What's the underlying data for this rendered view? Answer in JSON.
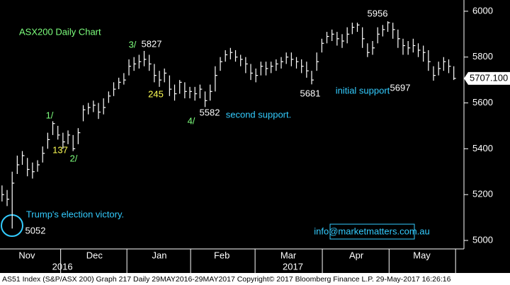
{
  "chart_data": {
    "type": "ohlc",
    "annotations": [
      {
        "text": "ASX200 Daily Chart",
        "color": "#7dff7d"
      },
      {
        "text": "3/",
        "color": "#7dff7d"
      },
      {
        "text": "5827",
        "color": "#ffffff"
      },
      {
        "text": "1/",
        "color": "#7dff7d"
      },
      {
        "text": "137",
        "color": "#ffff55"
      },
      {
        "text": "2/",
        "color": "#7dff7d"
      },
      {
        "text": "245",
        "color": "#ffff55"
      },
      {
        "text": "4/",
        "color": "#7dff7d"
      },
      {
        "text": "5582",
        "color": "#ffffff"
      },
      {
        "text": "second support.",
        "color": "#33ccff"
      },
      {
        "text": "5681",
        "color": "#ffffff"
      },
      {
        "text": "initial support",
        "color": "#33ccff"
      },
      {
        "text": "5956",
        "color": "#ffffff"
      },
      {
        "text": "5697",
        "color": "#ffffff"
      },
      {
        "text": "Trump's election victory.",
        "color": "#33ccff"
      },
      {
        "text": "5052",
        "color": "#ffffff"
      },
      {
        "text": "info@marketmatters.com.au",
        "color": "#33ccff"
      }
    ],
    "footer": "AS51 Index (S&P/ASX 200) Graph 217  Daily 29MAY2016-29MAY2017  Copyright© 2017 Bloomberg Finance L.P.  29-May-2017 16:26:16",
    "color": "#ffffff",
    "last_price": {
      "value": 5707.1,
      "label": "5707.100"
    },
    "xlim": [
      -0.4,
      91
    ],
    "xticks": [
      {
        "value": 4.9,
        "label": "Nov"
      },
      {
        "value": 18.2,
        "label": "Dec"
      },
      {
        "value": 31,
        "label": "Jan"
      },
      {
        "value": 43.3,
        "label": "Feb"
      },
      {
        "value": 56.4,
        "label": "Mar"
      },
      {
        "value": 69.8,
        "label": "Apr"
      },
      {
        "value": 82.7,
        "label": "May"
      }
    ],
    "year_labels": [
      {
        "value": 11.9,
        "label": "2016"
      },
      {
        "value": 57.3,
        "label": "2017"
      }
    ],
    "ylim": [
      4963,
      6049
    ],
    "yticks": [
      5000,
      5200,
      5400,
      5600,
      5800,
      6000
    ],
    "grid": false,
    "high": [
      5240,
      5220,
      5300,
      5370,
      5390,
      5360,
      5340,
      5350,
      5410,
      5470,
      5520,
      5500,
      5470,
      5480,
      5460,
      5490,
      5590,
      5600,
      5610,
      5600,
      5620,
      5650,
      5690,
      5710,
      5730,
      5790,
      5800,
      5810,
      5827,
      5810,
      5770,
      5740,
      5750,
      5720,
      5680,
      5700,
      5690,
      5670,
      5670,
      5680,
      5650,
      5680,
      5760,
      5800,
      5830,
      5840,
      5830,
      5810,
      5800,
      5770,
      5750,
      5780,
      5780,
      5780,
      5790,
      5800,
      5820,
      5820,
      5800,
      5790,
      5780,
      5740,
      5820,
      5880,
      5910,
      5920,
      5910,
      5900,
      5930,
      5950,
      5950,
      5930,
      5860,
      5870,
      5930,
      5940,
      5956,
      5950,
      5920,
      5880,
      5870,
      5880,
      5860,
      5850,
      5830,
      5760,
      5780,
      5800,
      5790,
      5760
    ],
    "low": [
      5170,
      5150,
      5052,
      5290,
      5330,
      5280,
      5270,
      5300,
      5340,
      5400,
      5460,
      5440,
      5400,
      5420,
      5390,
      5420,
      5520,
      5550,
      5560,
      5530,
      5550,
      5600,
      5630,
      5660,
      5680,
      5720,
      5740,
      5750,
      5760,
      5740,
      5690,
      5670,
      5690,
      5630,
      5610,
      5640,
      5620,
      5620,
      5610,
      5620,
      5582,
      5610,
      5650,
      5740,
      5780,
      5790,
      5780,
      5760,
      5730,
      5700,
      5690,
      5720,
      5720,
      5730,
      5740,
      5750,
      5770,
      5760,
      5750,
      5730,
      5710,
      5681,
      5740,
      5820,
      5860,
      5870,
      5850,
      5840,
      5860,
      5900,
      5910,
      5840,
      5800,
      5810,
      5860,
      5890,
      5910,
      5880,
      5840,
      5810,
      5810,
      5820,
      5800,
      5780,
      5740,
      5697,
      5720,
      5740,
      5730,
      5700
    ],
    "close": [
      5200,
      5180,
      5250,
      5330,
      5370,
      5310,
      5300,
      5330,
      5380,
      5440,
      5510,
      5460,
      5430,
      5460,
      5400,
      5470,
      5570,
      5580,
      5590,
      5560,
      5580,
      5630,
      5660,
      5690,
      5700,
      5760,
      5770,
      5780,
      5790,
      5770,
      5720,
      5700,
      5730,
      5660,
      5640,
      5690,
      5650,
      5650,
      5640,
      5660,
      5610,
      5650,
      5720,
      5780,
      5810,
      5820,
      5800,
      5790,
      5770,
      5730,
      5720,
      5760,
      5750,
      5760,
      5770,
      5780,
      5800,
      5790,
      5780,
      5760,
      5740,
      5700,
      5780,
      5860,
      5890,
      5900,
      5880,
      5870,
      5900,
      5930,
      5940,
      5880,
      5820,
      5840,
      5900,
      5920,
      5950,
      5920,
      5880,
      5850,
      5840,
      5850,
      5830,
      5820,
      5780,
      5720,
      5750,
      5780,
      5760,
      5707
    ]
  }
}
